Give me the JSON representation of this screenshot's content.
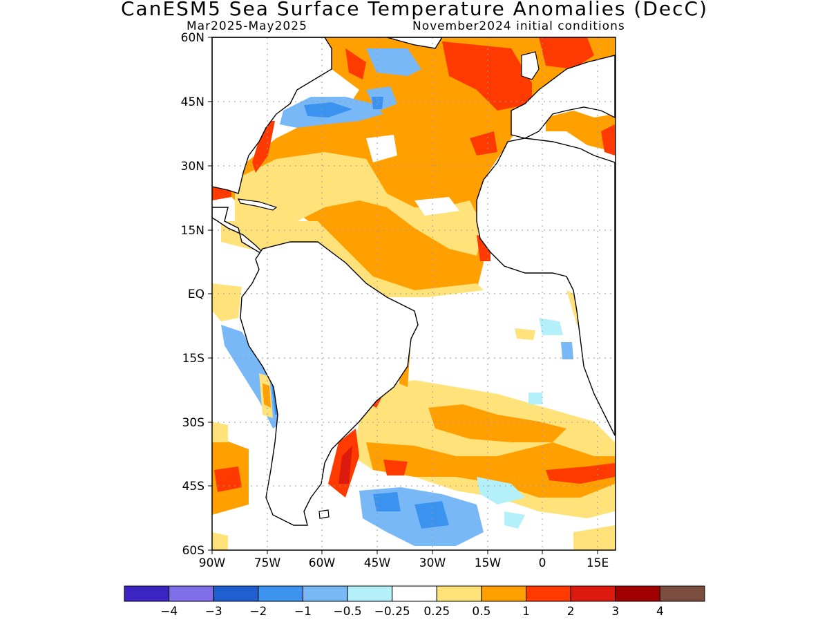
{
  "title": "CanESM5 Sea Surface Temperature Anomalies (DecC)",
  "period": "Mar2025-May2025",
  "initial_conditions": "November2024 initial conditions",
  "map": {
    "lat_labels": [
      "60N",
      "45N",
      "30N",
      "15N",
      "EQ",
      "15S",
      "30S",
      "45S",
      "60S"
    ],
    "lon_labels": [
      "90W",
      "75W",
      "60W",
      "45W",
      "30W",
      "15W",
      "0",
      "15E"
    ],
    "lat_range": [
      -60,
      60
    ],
    "lon_range": [
      -90,
      20
    ],
    "grid": "dotted"
  },
  "colorbar": {
    "colors": [
      "#3b24c2",
      "#7f6ee8",
      "#1f5fcf",
      "#3c93ef",
      "#78b8f7",
      "#b4f0fa",
      "#ffffff",
      "#ffe27a",
      "#ffa000",
      "#ff3a00",
      "#dc1a0e",
      "#a00000",
      "#7a4d3e"
    ],
    "labels": [
      "-4",
      "-3",
      "-2",
      "-1",
      "-0.5",
      "-0.25",
      "0.25",
      "0.5",
      "1",
      "2",
      "3",
      "4"
    ]
  }
}
